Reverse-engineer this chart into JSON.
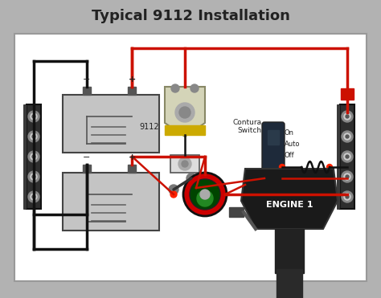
{
  "title": "Typical 9112 Installation",
  "title_fontsize": 13,
  "title_fontweight": "bold",
  "bg_outer": "#b2b2b2",
  "bg_inner": "#ffffff",
  "wire_red": "#cc1100",
  "wire_black": "#111111",
  "battery_fill": "#c2c2c2",
  "battery_border": "#555555",
  "bus_bar_fill": "#2a2a2a",
  "label_9112": "9112",
  "label_contura": "Contura\nSwitch",
  "label_switch_options": [
    "On",
    "Auto",
    "Off"
  ],
  "label_engine": "ENGINE 1",
  "lw_main": 2.5,
  "lw_thin": 1.8
}
